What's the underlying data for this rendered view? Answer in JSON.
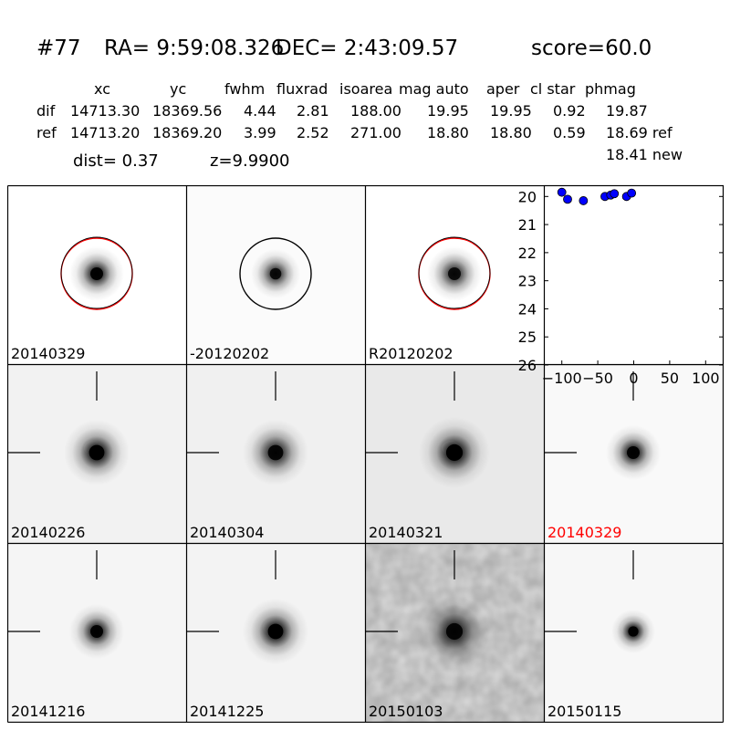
{
  "header": {
    "id": "#77",
    "ra": "RA= 9:59:08.326",
    "dec": "DEC= 2:43:09.57",
    "score": "score=60.0"
  },
  "table": {
    "columns": [
      "xc",
      "yc",
      "fwhm",
      "fluxrad",
      "isoarea",
      "mag auto",
      "aper",
      "cl star",
      "phmag"
    ],
    "rows": [
      {
        "label": "dif",
        "values": [
          "14713.30",
          "18369.56",
          "4.44",
          "2.81",
          "188.00",
          "19.95",
          "19.95",
          "0.92",
          "19.87"
        ]
      },
      {
        "label": "ref",
        "values": [
          "14713.20",
          "18369.20",
          "3.99",
          "2.52",
          "271.00",
          "18.80",
          "18.80",
          "0.59",
          "18.69 ref"
        ]
      }
    ],
    "extra": "18.41 new",
    "dist": "dist=  0.37",
    "z": "z=9.9900"
  },
  "colors": {
    "red": "#ff0000",
    "marker": "#0000ff"
  },
  "cutouts": [
    {
      "label": "20140329",
      "row": 0,
      "col": 0,
      "circle": "red",
      "cross": false,
      "bg": "#ffffff",
      "psf": 1.0,
      "core": 0.95,
      "dipole": false,
      "noise": false
    },
    {
      "label": "-20120202",
      "row": 0,
      "col": 1,
      "circle": "black",
      "cross": false,
      "bg": "#fbfbfb",
      "psf": 0.9,
      "core": 0.85,
      "dipole": false,
      "noise": false
    },
    {
      "label": "R20120202",
      "row": 0,
      "col": 2,
      "circle": "red",
      "cross": false,
      "bg": "#ffffff",
      "psf": 1.0,
      "core": 0.85,
      "dipole": false,
      "noise": false
    },
    {
      "label": "20140226",
      "row": 1,
      "col": 0,
      "circle": "none",
      "cross": true,
      "bg": "#f2f2f2",
      "psf": 1.2,
      "core": 1.0,
      "dipole": true,
      "noise": false
    },
    {
      "label": "20140304",
      "row": 1,
      "col": 1,
      "circle": "none",
      "cross": true,
      "bg": "#f0f0f0",
      "psf": 1.2,
      "core": 0.9,
      "dipole": false,
      "noise": false
    },
    {
      "label": "20140321",
      "row": 1,
      "col": 2,
      "circle": "none",
      "cross": true,
      "bg": "#e9e9e9",
      "psf": 1.3,
      "core": 1.0,
      "dipole": true,
      "noise": false
    },
    {
      "label": "20140329",
      "row": 1,
      "col": 3,
      "circle": "none",
      "cross": true,
      "bg": "#f9f9f9",
      "psf": 1.0,
      "core": 0.95,
      "dipole": false,
      "noise": false,
      "labelColor": "red"
    },
    {
      "label": "20141216",
      "row": 2,
      "col": 0,
      "circle": "none",
      "cross": true,
      "bg": "#f5f5f5",
      "psf": 1.0,
      "core": 0.95,
      "dipole": false,
      "noise": false
    },
    {
      "label": "20141225",
      "row": 2,
      "col": 1,
      "circle": "none",
      "cross": true,
      "bg": "#f3f3f3",
      "psf": 1.2,
      "core": 1.0,
      "dipole": true,
      "noise": false
    },
    {
      "label": "20150103",
      "row": 2,
      "col": 2,
      "circle": "none",
      "cross": true,
      "bg": "#dcdcdc",
      "psf": 1.3,
      "core": 0.9,
      "dipole": false,
      "noise": true
    },
    {
      "label": "20150115",
      "row": 2,
      "col": 3,
      "circle": "none",
      "cross": true,
      "bg": "#f7f7f7",
      "psf": 0.8,
      "core": 1.0,
      "dipole": true,
      "noise": false
    }
  ],
  "chart_data": {
    "type": "scatter",
    "x": [
      -100,
      -92,
      -70,
      -40,
      -32,
      -27,
      -10,
      -3
    ],
    "y": [
      19.85,
      20.1,
      20.15,
      20.0,
      19.95,
      19.9,
      20.0,
      19.88
    ],
    "xlim": [
      -125,
      125
    ],
    "ylim": [
      26,
      19.6
    ],
    "xticks": [
      "-100",
      "-50",
      "0",
      "50",
      "100"
    ],
    "yticks": [
      "20",
      "21",
      "22",
      "23",
      "24",
      "25",
      "26"
    ],
    "xtick_values": [
      -100,
      -50,
      0,
      50,
      100
    ],
    "ytick_values": [
      20,
      21,
      22,
      23,
      24,
      25,
      26
    ],
    "ylabel": "",
    "xlabel": "",
    "grid": false,
    "marker_color": "#0000ff"
  }
}
